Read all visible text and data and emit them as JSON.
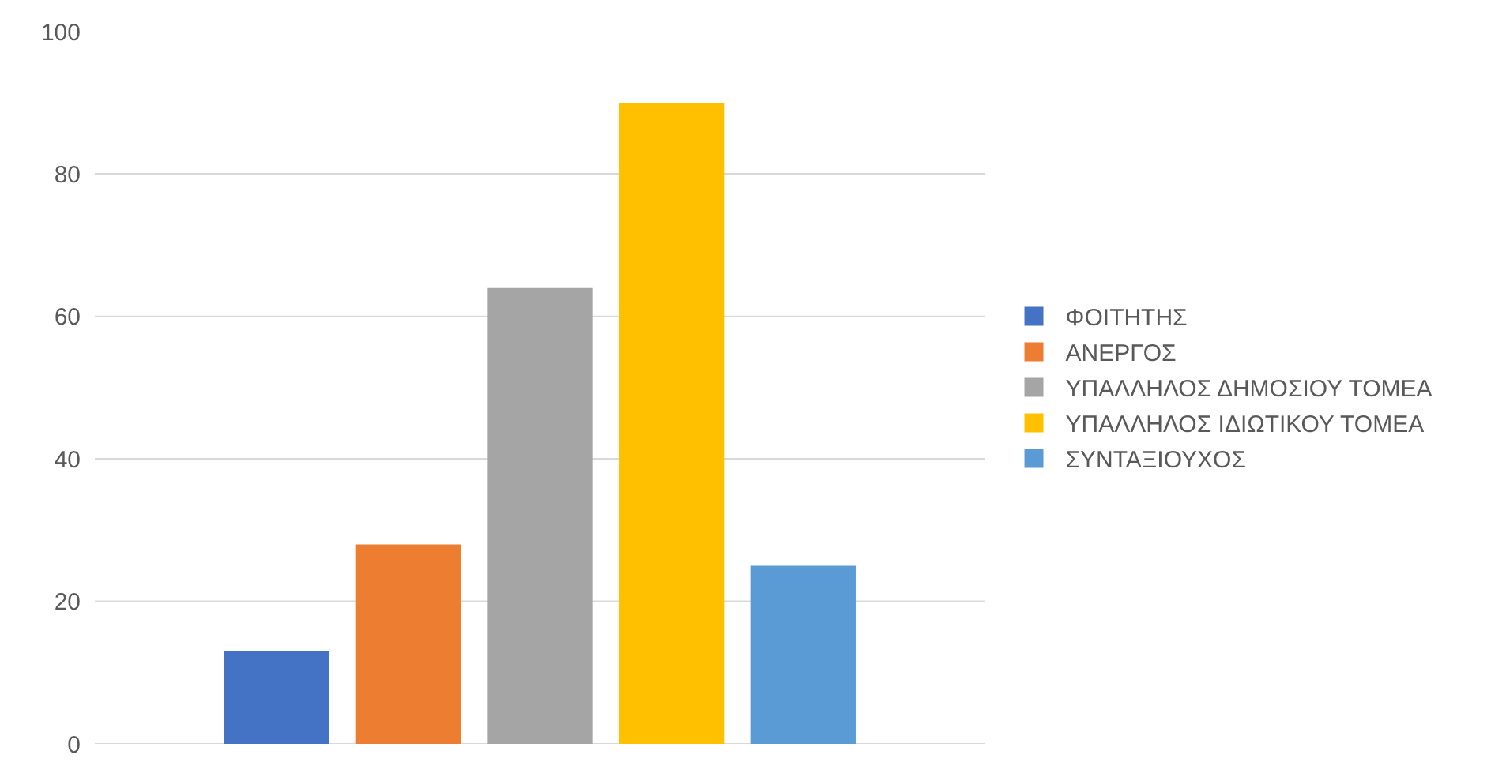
{
  "chart_data": {
    "type": "bar",
    "categories": [
      null
    ],
    "series": [
      {
        "name": "ΦΟΙΤΗΤΗΣ",
        "color": "#4472c4",
        "values": [
          13
        ]
      },
      {
        "name": "ΑΝΕΡΓΟΣ",
        "color": "#ed7d31",
        "values": [
          28
        ]
      },
      {
        "name": "ΥΠΑΛΛΗΛΟΣ ΔΗΜΟΣΙΟΥ ΤΟΜΕΑ",
        "color": "#a5a5a5",
        "values": [
          64
        ]
      },
      {
        "name": "ΥΠΑΛΛΗΛΟΣ ΙΔΙΩΤΙΚΟΥ ΤΟΜΕΑ",
        "color": "#ffc000",
        "values": [
          90
        ]
      },
      {
        "name": "ΣΥΝΤΑΞΙΟΥΧΟΣ",
        "color": "#5b9bd5",
        "values": [
          25
        ]
      }
    ],
    "ylim": [
      0,
      100
    ],
    "yticks": [
      0,
      20,
      40,
      60,
      80,
      100
    ],
    "grid": "y",
    "legend": "right"
  }
}
